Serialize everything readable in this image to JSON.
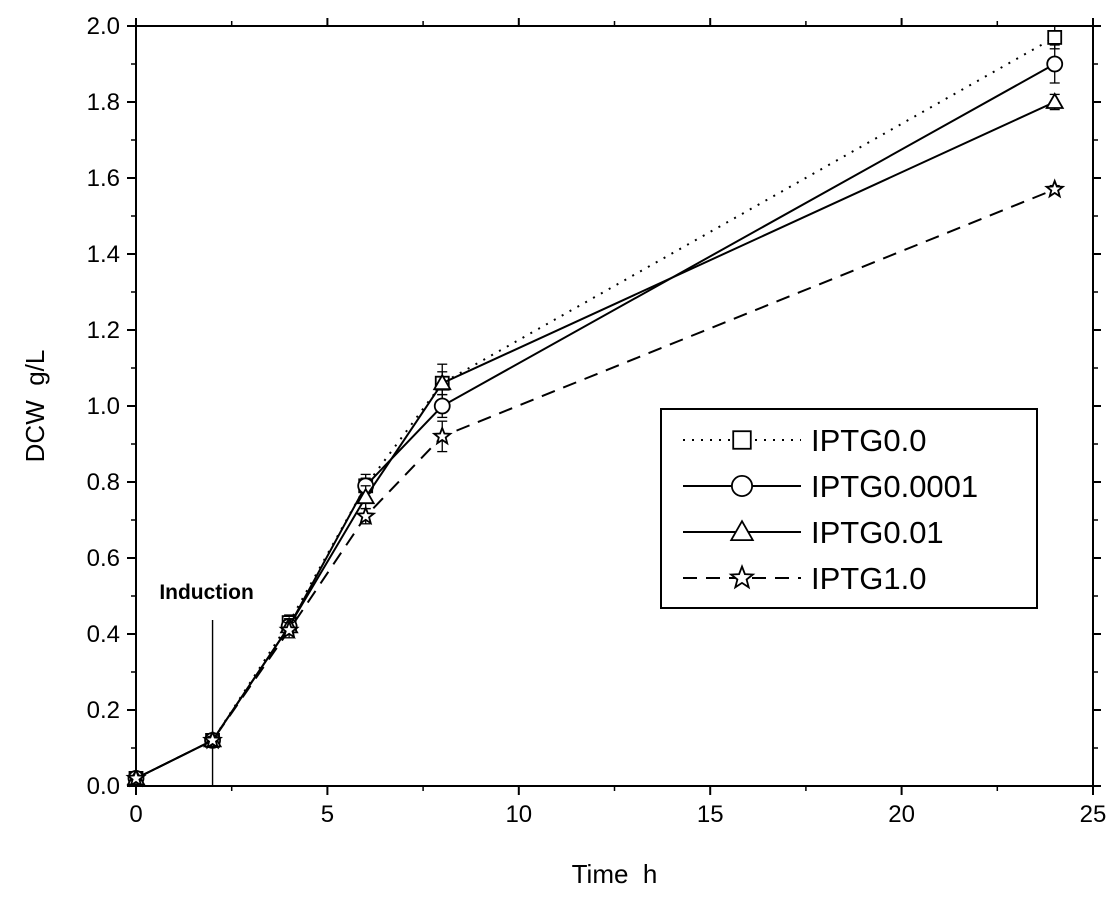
{
  "chart_data": {
    "type": "line",
    "title": "",
    "xlabel": "Time  h",
    "ylabel": "DCW  g/L",
    "xlim": [
      0,
      25
    ],
    "ylim": [
      0.0,
      2.0
    ],
    "xticks": [
      0,
      5,
      10,
      15,
      20,
      25
    ],
    "xtick_labels": [
      "0",
      "5",
      "10",
      "15",
      "20",
      "25"
    ],
    "yticks": [
      0.0,
      0.2,
      0.4,
      0.6,
      0.8,
      1.0,
      1.2,
      1.4,
      1.6,
      1.8,
      2.0
    ],
    "ytick_labels": [
      "0.0",
      "0.2",
      "0.4",
      "0.6",
      "0.8",
      "1.0",
      "1.2",
      "1.4",
      "1.6",
      "1.8",
      "2.0"
    ],
    "grid": false,
    "legend_position": "center-right",
    "x": [
      0,
      2,
      4,
      6,
      8,
      24
    ],
    "series": [
      {
        "name": "IPTG0.0",
        "marker": "square",
        "line": "dotted",
        "values": [
          0.02,
          0.12,
          0.43,
          0.79,
          1.06,
          1.97
        ],
        "errors": [
          0.005,
          0.01,
          0.02,
          0.03,
          0.05,
          0.03
        ]
      },
      {
        "name": "IPTG0.0001",
        "marker": "circle",
        "line": "solid",
        "values": [
          0.02,
          0.12,
          0.42,
          0.79,
          1.0,
          1.9
        ],
        "errors": [
          0.005,
          0.01,
          0.02,
          0.02,
          0.03,
          0.05
        ]
      },
      {
        "name": "IPTG0.01",
        "marker": "triangle",
        "line": "solid",
        "values": [
          0.02,
          0.12,
          0.42,
          0.76,
          1.06,
          1.8
        ],
        "errors": [
          0.005,
          0.01,
          0.02,
          0.03,
          0.03,
          0.02
        ]
      },
      {
        "name": "IPTG1.0",
        "marker": "star",
        "line": "dashed",
        "values": [
          0.02,
          0.12,
          0.41,
          0.71,
          0.92,
          1.57
        ],
        "errors": [
          0.005,
          0.01,
          0.02,
          0.02,
          0.04,
          0.01
        ]
      }
    ],
    "annotations": [
      {
        "text": "Induction",
        "x": 2
      }
    ],
    "colors": {
      "line": "#000000",
      "background": "#ffffff"
    }
  }
}
